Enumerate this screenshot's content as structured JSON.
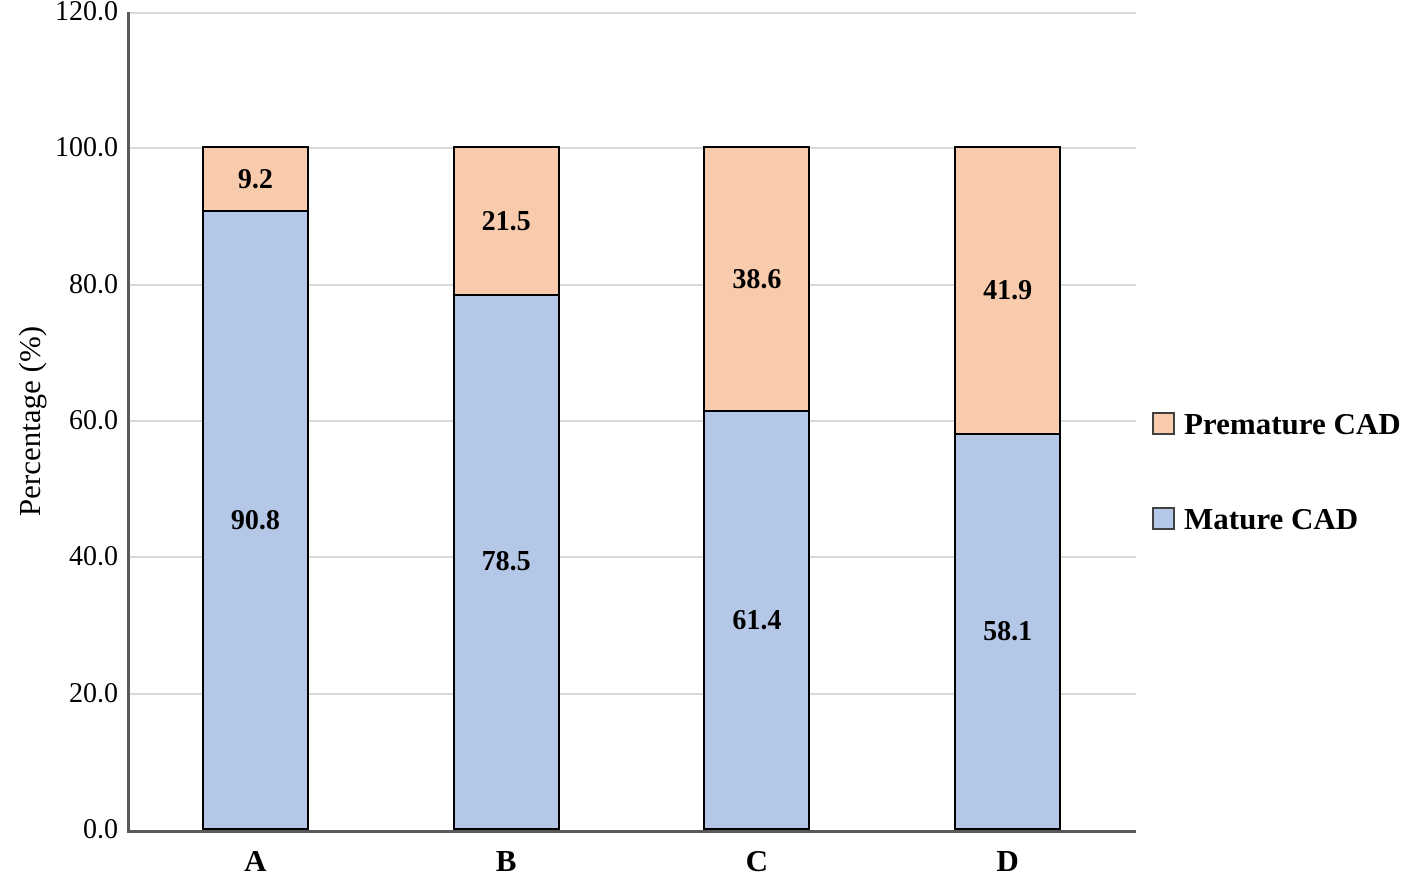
{
  "chart_data": {
    "type": "bar",
    "stacked": true,
    "title": "",
    "categories": [
      "A",
      "B",
      "C",
      "D"
    ],
    "series": [
      {
        "name": "Mature CAD",
        "color": "#b4c7e7",
        "values": [
          90.8,
          78.5,
          61.4,
          58.1
        ]
      },
      {
        "name": "Premature CAD",
        "color": "#f8cbad",
        "values": [
          9.2,
          21.5,
          38.6,
          41.9
        ]
      }
    ],
    "xlabel": "",
    "ylabel": "Percentage (%)",
    "ylim": [
      0,
      120
    ],
    "ytick_step": 20,
    "ytick_labels": [
      "0.0",
      "20.0",
      "40.0",
      "60.0",
      "80.0",
      "100.0",
      "120.0"
    ],
    "grid": true,
    "legend": {
      "position": "right",
      "entries": [
        "Premature CAD",
        "Mature CAD"
      ]
    },
    "styles": {
      "bar_border_color": "#000000",
      "axis_color": "#595959",
      "gridline_color": "#d9d9d9",
      "legend_swatch_border": "#404040",
      "background": "#ffffff"
    }
  }
}
